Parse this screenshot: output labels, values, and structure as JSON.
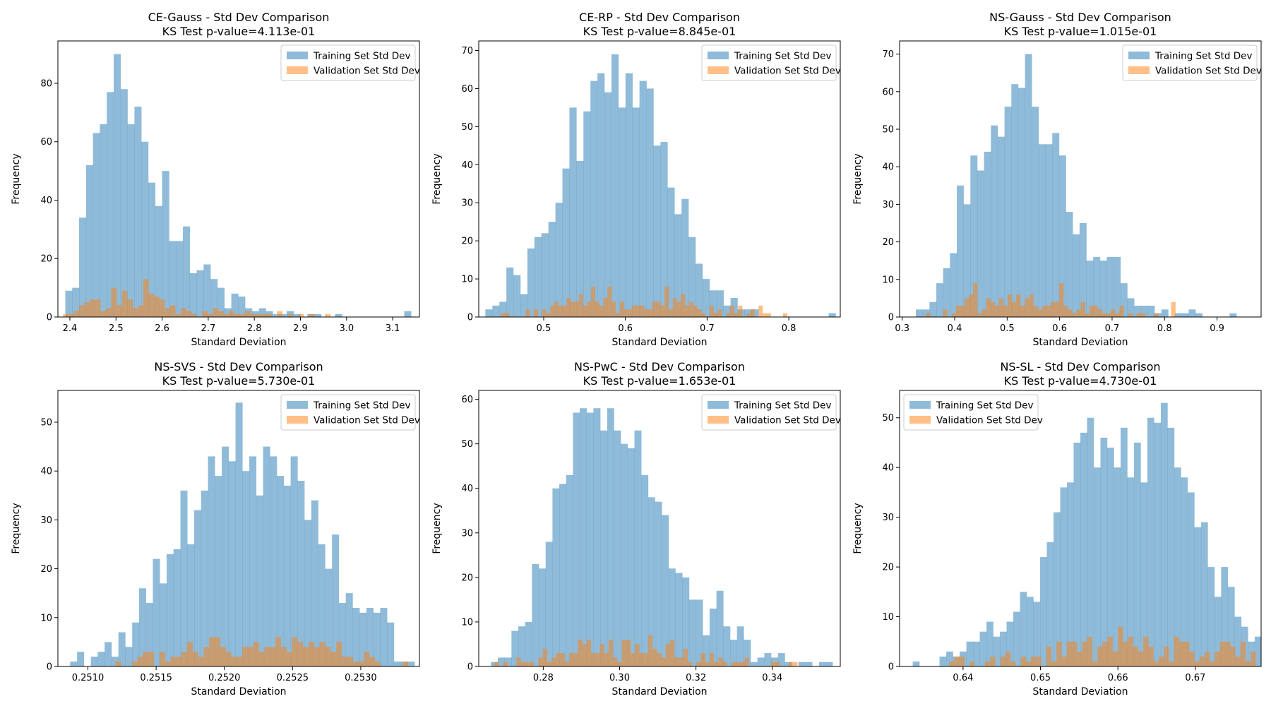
{
  "colors": {
    "training": "#1f77b4",
    "validation": "#ff7f0e",
    "training_alpha": 0.5,
    "validation_alpha": 0.5
  },
  "chart_data": [
    {
      "type": "bar",
      "title": "CE-Gauss - Std Dev Comparison",
      "subtitle": "KS Test p-value=4.113e-01",
      "xlabel": "Standard Deviation",
      "ylabel": "Frequency",
      "xlim": [
        2.374,
        3.158
      ],
      "ylim": [
        0,
        94.5
      ],
      "xticks": [
        2.4,
        2.5,
        2.6,
        2.7,
        2.8,
        2.9,
        3.0,
        3.1
      ],
      "xtick_labels": [
        "2.4",
        "2.5",
        "2.6",
        "2.7",
        "2.8",
        "2.9",
        "3.0",
        "3.1"
      ],
      "yticks": [
        0,
        20,
        40,
        60,
        80
      ],
      "legend_loc": "upper right",
      "series": [
        {
          "name": "Training Set Std Dev",
          "bin_start": 2.39,
          "bin_width": 0.015,
          "values": [
            9,
            10,
            34,
            52,
            63,
            66,
            77,
            90,
            78,
            66,
            72,
            60,
            46,
            38,
            50,
            26,
            26,
            31,
            15,
            16,
            18,
            13,
            10,
            3,
            8,
            7,
            3,
            2,
            3,
            2,
            1,
            1,
            2,
            1,
            0,
            1,
            1,
            0,
            0,
            1,
            0,
            0,
            0,
            0,
            0,
            0,
            0,
            0,
            0,
            2
          ]
        },
        {
          "name": "Validation Set Std Dev",
          "bin_start": 2.385,
          "bin_width": 0.0116,
          "values": [
            1,
            1,
            2,
            4,
            5,
            6,
            6,
            2,
            3,
            10,
            4,
            9,
            6,
            3,
            4,
            13,
            8,
            7,
            6,
            3,
            4,
            1,
            3,
            2,
            1,
            0,
            2,
            1,
            3,
            2,
            1,
            2,
            1,
            1,
            2,
            1,
            1,
            1,
            1,
            0,
            2,
            0,
            1,
            0,
            1,
            0,
            1,
            0,
            0,
            1
          ]
        }
      ]
    },
    {
      "type": "bar",
      "title": "CE-RP - Std Dev Comparison",
      "subtitle": "KS Test p-value=8.845e-01",
      "xlabel": "Standard Deviation",
      "ylabel": "Frequency",
      "xlim": [
        0.4205,
        0.863
      ],
      "ylim": [
        0,
        72.5
      ],
      "xticks": [
        0.5,
        0.6,
        0.7,
        0.8
      ],
      "xtick_labels": [
        "0.5",
        "0.6",
        "0.7",
        "0.8"
      ],
      "yticks": [
        0,
        10,
        20,
        30,
        40,
        50,
        60,
        70
      ],
      "legend_loc": "upper right",
      "series": [
        {
          "name": "Training Set Std Dev",
          "bin_start": 0.4286,
          "bin_width": 0.008575,
          "values": [
            2,
            3,
            4,
            13,
            11,
            6,
            18,
            21,
            22,
            25,
            30,
            39,
            55,
            41,
            54,
            62,
            64,
            59,
            69,
            55,
            64,
            55,
            62,
            60,
            45,
            46,
            34,
            27,
            31,
            21,
            14,
            10,
            7,
            7,
            3,
            5,
            2,
            2,
            2,
            0,
            0,
            0,
            0,
            0,
            0,
            0,
            0,
            0,
            0,
            1
          ]
        },
        {
          "name": "Validation Set Std Dev",
          "bin_start": 0.448,
          "bin_width": 0.005,
          "values": [
            1,
            1,
            0,
            0,
            0,
            0,
            2,
            0,
            2,
            0,
            2,
            1,
            3,
            4,
            3,
            3,
            5,
            4,
            4,
            6,
            3,
            4,
            8,
            4,
            3,
            5,
            8,
            4,
            1,
            4,
            2,
            2,
            3,
            3,
            3,
            2,
            2,
            4,
            4,
            3,
            8,
            2,
            5,
            4,
            6,
            3,
            4,
            3,
            2,
            1,
            0,
            3,
            1,
            2,
            0,
            1,
            3,
            1,
            3,
            0,
            1,
            2,
            0,
            3,
            1,
            1,
            0,
            0,
            0,
            1
          ]
        }
      ]
    },
    {
      "type": "bar",
      "title": "NS-Gauss - Std Dev Comparison",
      "subtitle": "KS Test p-value=1.015e-01",
      "xlabel": "Standard Deviation",
      "ylabel": "Frequency",
      "xlim": [
        0.295,
        0.984
      ],
      "ylim": [
        0,
        73.5
      ],
      "xticks": [
        0.3,
        0.4,
        0.5,
        0.6,
        0.7,
        0.8,
        0.9
      ],
      "xtick_labels": [
        "0.3",
        "0.4",
        "0.5",
        "0.6",
        "0.7",
        "0.8",
        "0.9"
      ],
      "yticks": [
        0,
        10,
        20,
        30,
        40,
        50,
        60,
        70
      ],
      "legend_loc": "upper right",
      "series": [
        {
          "name": "Training Set Std Dev",
          "bin_start": 0.326,
          "bin_width": 0.013,
          "values": [
            2,
            2,
            4,
            9,
            13,
            17,
            35,
            30,
            43,
            39,
            44,
            51,
            48,
            56,
            62,
            61,
            70,
            56,
            46,
            46,
            49,
            43,
            28,
            22,
            25,
            15,
            16,
            15,
            16,
            16,
            9,
            5,
            3,
            3,
            3,
            1,
            2,
            0,
            1,
            1,
            2,
            1,
            0,
            0,
            0,
            0,
            1,
            0,
            0,
            0
          ]
        },
        {
          "name": "Validation Set Std Dev",
          "bin_start": 0.345,
          "bin_width": 0.0082,
          "values": [
            1,
            0,
            0,
            0,
            2,
            0,
            1,
            3,
            3,
            5,
            6,
            9,
            1,
            2,
            5,
            4,
            3,
            5,
            3,
            6,
            4,
            6,
            3,
            5,
            6,
            3,
            2,
            3,
            3,
            4,
            4,
            9,
            3,
            2,
            1,
            2,
            4,
            1,
            3,
            3,
            2,
            1,
            1,
            2,
            1,
            3,
            0,
            1,
            0,
            1,
            1,
            0,
            0,
            1,
            0,
            0,
            0,
            4
          ]
        }
      ]
    },
    {
      "type": "bar",
      "title": "NS-SVS - Std Dev Comparison",
      "subtitle": "KS Test p-value=5.730e-01",
      "xlabel": "Standard Deviation",
      "ylabel": "Frequency",
      "xlim": [
        0.25078,
        0.25343
      ],
      "ylim": [
        0,
        56.5
      ],
      "xticks": [
        0.251,
        0.2515,
        0.252,
        0.2525,
        0.253
      ],
      "xtick_labels": [
        "0.2510",
        "0.2515",
        "0.2520",
        "0.2525",
        "0.2530"
      ],
      "yticks": [
        0,
        10,
        20,
        30,
        40,
        50
      ],
      "legend_loc": "upper right",
      "series": [
        {
          "name": "Training Set Std Dev",
          "bin_start": 0.25087,
          "bin_width": 5.05e-05,
          "values": [
            1,
            3,
            0,
            2,
            3,
            5,
            2,
            7,
            4,
            9,
            16,
            13,
            22,
            17,
            23,
            24,
            36,
            25,
            32,
            36,
            43,
            39,
            45,
            42,
            54,
            40,
            43,
            35,
            45,
            43,
            39,
            37,
            43,
            38,
            30,
            34,
            25,
            20,
            27,
            13,
            15,
            12,
            11,
            12,
            11,
            12,
            9,
            1,
            1,
            1
          ]
        },
        {
          "name": "Validation Set Std Dev",
          "bin_start": 0.2512,
          "bin_width": 4.05e-05,
          "values": [
            1,
            0,
            0,
            1,
            2,
            3,
            3,
            0,
            3,
            1,
            2,
            2,
            3,
            5,
            3,
            2,
            4,
            6,
            6,
            4,
            3,
            2,
            2,
            4,
            4,
            5,
            3,
            4,
            4,
            6,
            4,
            3,
            6,
            5,
            4,
            5,
            4,
            5,
            4,
            3,
            5,
            2,
            2,
            1,
            1,
            3,
            2,
            1,
            0,
            0,
            0,
            0,
            1
          ]
        }
      ]
    },
    {
      "type": "bar",
      "title": "NS-PwC - Std Dev Comparison",
      "subtitle": "KS Test p-value=1.653e-01",
      "xlabel": "Standard Deviation",
      "ylabel": "Frequency",
      "xlim": [
        0.2631,
        0.3578
      ],
      "ylim": [
        0,
        62
      ],
      "xticks": [
        0.28,
        0.3,
        0.32,
        0.34
      ],
      "xtick_labels": [
        "0.28",
        "0.30",
        "0.32",
        "0.34"
      ],
      "yticks": [
        0,
        10,
        20,
        30,
        40,
        50,
        60
      ],
      "legend_loc": "upper right",
      "series": [
        {
          "name": "Training Set Std Dev",
          "bin_start": 0.2663,
          "bin_width": 0.00179,
          "values": [
            1,
            2,
            2,
            8,
            9,
            10,
            23,
            22,
            28,
            40,
            41,
            43,
            57,
            58,
            57,
            58,
            53,
            58,
            53,
            50,
            49,
            53,
            43,
            38,
            37,
            34,
            22,
            21,
            20,
            15,
            15,
            7,
            13,
            17,
            9,
            6,
            9,
            6,
            1,
            2,
            3,
            2,
            3,
            1,
            0,
            1,
            1,
            0,
            1,
            1
          ]
        },
        {
          "name": "Validation Set Std Dev",
          "bin_start": 0.2672,
          "bin_width": 0.00115,
          "values": [
            1,
            0,
            1,
            0,
            0,
            2,
            1,
            1,
            1,
            0,
            2,
            4,
            1,
            2,
            3,
            3,
            1,
            3,
            3,
            6,
            5,
            6,
            3,
            3,
            5,
            3,
            6,
            2,
            1,
            6,
            6,
            3,
            5,
            3,
            3,
            7,
            4,
            3,
            2,
            5,
            6,
            2,
            2,
            4,
            1,
            0,
            1,
            3,
            1,
            3,
            1,
            2,
            1,
            0,
            1,
            1,
            1,
            2,
            0,
            0,
            0,
            0,
            0,
            1,
            1,
            0,
            0,
            1,
            1,
            0
          ]
        }
      ]
    },
    {
      "type": "bar",
      "title": "NS-SL - Std Dev Comparison",
      "subtitle": "KS Test p-value=4.730e-01",
      "xlabel": "Standard Deviation",
      "ylabel": "Frequency",
      "xlim": [
        0.6318,
        0.6785
      ],
      "ylim": [
        0,
        55.5
      ],
      "xticks": [
        0.64,
        0.65,
        0.66,
        0.67
      ],
      "xtick_labels": [
        "0.64",
        "0.65",
        "0.66",
        "0.67"
      ],
      "yticks": [
        0,
        10,
        20,
        30,
        40,
        50
      ],
      "legend_loc": "upper left",
      "series": [
        {
          "name": "Training Set Std Dev",
          "bin_start": 0.6335,
          "bin_width": 0.000866,
          "values": [
            1,
            0,
            0,
            0,
            2,
            3,
            2,
            3,
            5,
            5,
            7,
            9,
            6,
            7,
            9,
            11,
            15,
            14,
            13,
            22,
            25,
            31,
            36,
            37,
            45,
            47,
            50,
            40,
            46,
            44,
            40,
            48,
            38,
            45,
            37,
            50,
            49,
            53,
            48,
            40,
            38,
            35,
            28,
            29,
            20,
            14,
            20,
            16,
            10,
            8,
            5,
            6,
            8,
            10,
            12,
            11,
            8,
            6,
            6,
            4
          ]
        },
        {
          "name": "Validation Set Std Dev",
          "bin_start": 0.6382,
          "bin_width": 0.00066,
          "values": [
            1,
            2,
            2,
            0,
            1,
            0,
            0,
            1,
            2,
            0,
            2,
            3,
            1,
            0,
            2,
            1,
            2,
            2,
            0,
            4,
            1,
            5,
            2,
            5,
            5,
            3,
            5,
            6,
            1,
            4,
            5,
            6,
            3,
            8,
            5,
            6,
            4,
            3,
            6,
            4,
            1,
            2,
            4,
            1,
            6,
            5,
            5,
            3,
            1,
            2,
            3,
            1,
            3,
            5,
            5,
            4,
            2,
            5,
            1,
            3,
            0,
            1,
            1,
            0,
            1
          ]
        }
      ]
    }
  ]
}
